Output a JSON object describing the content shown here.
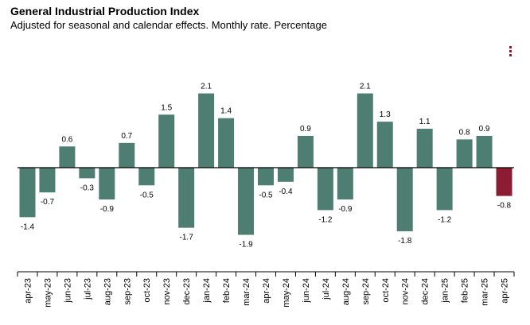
{
  "header": {
    "title": "General Industrial Production Index",
    "subtitle": "Adjusted for seasonal and calendar effects. Monthly rate. Percentage"
  },
  "menu": {
    "icon": "more-vertical-icon"
  },
  "colors": {
    "positive": "#4e7d72",
    "highlight": "#8b1c31",
    "axis": "#000000"
  },
  "chart_data": {
    "type": "bar",
    "title": "General Industrial Production Index",
    "subtitle": "Adjusted for seasonal and calendar effects. Monthly rate. Percentage",
    "xlabel": "",
    "ylabel": "",
    "ylim": [
      -2.2,
      2.3
    ],
    "grid": false,
    "highlight_last": true,
    "categories": [
      "apr-23",
      "may-23",
      "jun-23",
      "jul-23",
      "aug-23",
      "sep-23",
      "oct-23",
      "nov-23",
      "dec-23",
      "jan-24",
      "feb-24",
      "mar-24",
      "apr-24",
      "may-24",
      "jun-24",
      "jul-24",
      "aug-24",
      "sep-24",
      "oct-24",
      "nov-24",
      "dec-24",
      "jan-25",
      "feb-25",
      "mar-25",
      "apr-25"
    ],
    "values": [
      -1.4,
      -0.7,
      0.6,
      -0.3,
      -0.9,
      0.7,
      -0.5,
      1.5,
      -1.7,
      2.1,
      1.4,
      -1.9,
      -0.5,
      -0.4,
      0.9,
      -1.2,
      -0.9,
      2.1,
      1.3,
      -1.8,
      1.1,
      -1.2,
      0.8,
      0.9,
      -0.8
    ],
    "data_labels": [
      "-1.4",
      "-0.7",
      "0.6",
      "-0.3",
      "-0.9",
      "0.7",
      "-0.5",
      "1.5",
      "-1.7",
      "2.1",
      "1.4",
      "-1.9",
      "-0.5",
      "-0.4",
      "0.9",
      "-1.2",
      "-0.9",
      "2.1",
      "1.3",
      "-1.8",
      "1.1",
      "-1.2",
      "0.8",
      "0.9",
      "-0.8"
    ]
  }
}
